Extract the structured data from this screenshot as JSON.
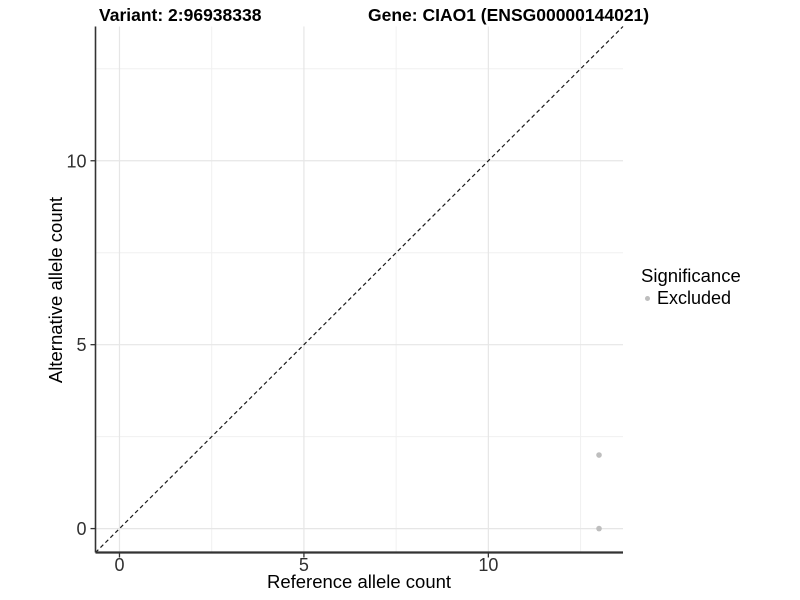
{
  "header": {
    "variant_title": "Variant: 2:96938338",
    "gene_title": "Gene: CIAO1 (ENSG00000144021)"
  },
  "chart_data": {
    "type": "scatter",
    "title": "",
    "xlabel": "Reference allele count",
    "ylabel": "Alternative allele count",
    "xlim": [
      -0.65,
      13.65
    ],
    "ylim": [
      -0.65,
      13.65
    ],
    "x_breaks": [
      0,
      5,
      10
    ],
    "x_minor_breaks": [
      2.5,
      7.5,
      12.5
    ],
    "y_breaks": [
      0,
      5,
      10
    ],
    "y_minor_breaks": [
      2.5,
      7.5,
      12.5
    ],
    "grid": true,
    "points": [
      {
        "x": 13,
        "y": 2,
        "significance": "Excluded"
      },
      {
        "x": 13,
        "y": 0,
        "significance": "Excluded"
      }
    ],
    "identity_line": {
      "slope": 1,
      "intercept": 0,
      "linetype": "dashed"
    },
    "legend": {
      "title": "Significance",
      "position": "right",
      "items": [
        {
          "label": "Excluded",
          "color": "#bebebe"
        }
      ]
    }
  },
  "style": {
    "point_color": "#bebebe",
    "grid_major_color": "#e6e6e6",
    "grid_minor_color": "#f0f0f0",
    "axis_line_color": "#333333",
    "tick_color": "#333333",
    "dashed_line_color": "#1a1a1a",
    "tick_label_color": "#303030",
    "background": "#ffffff"
  }
}
